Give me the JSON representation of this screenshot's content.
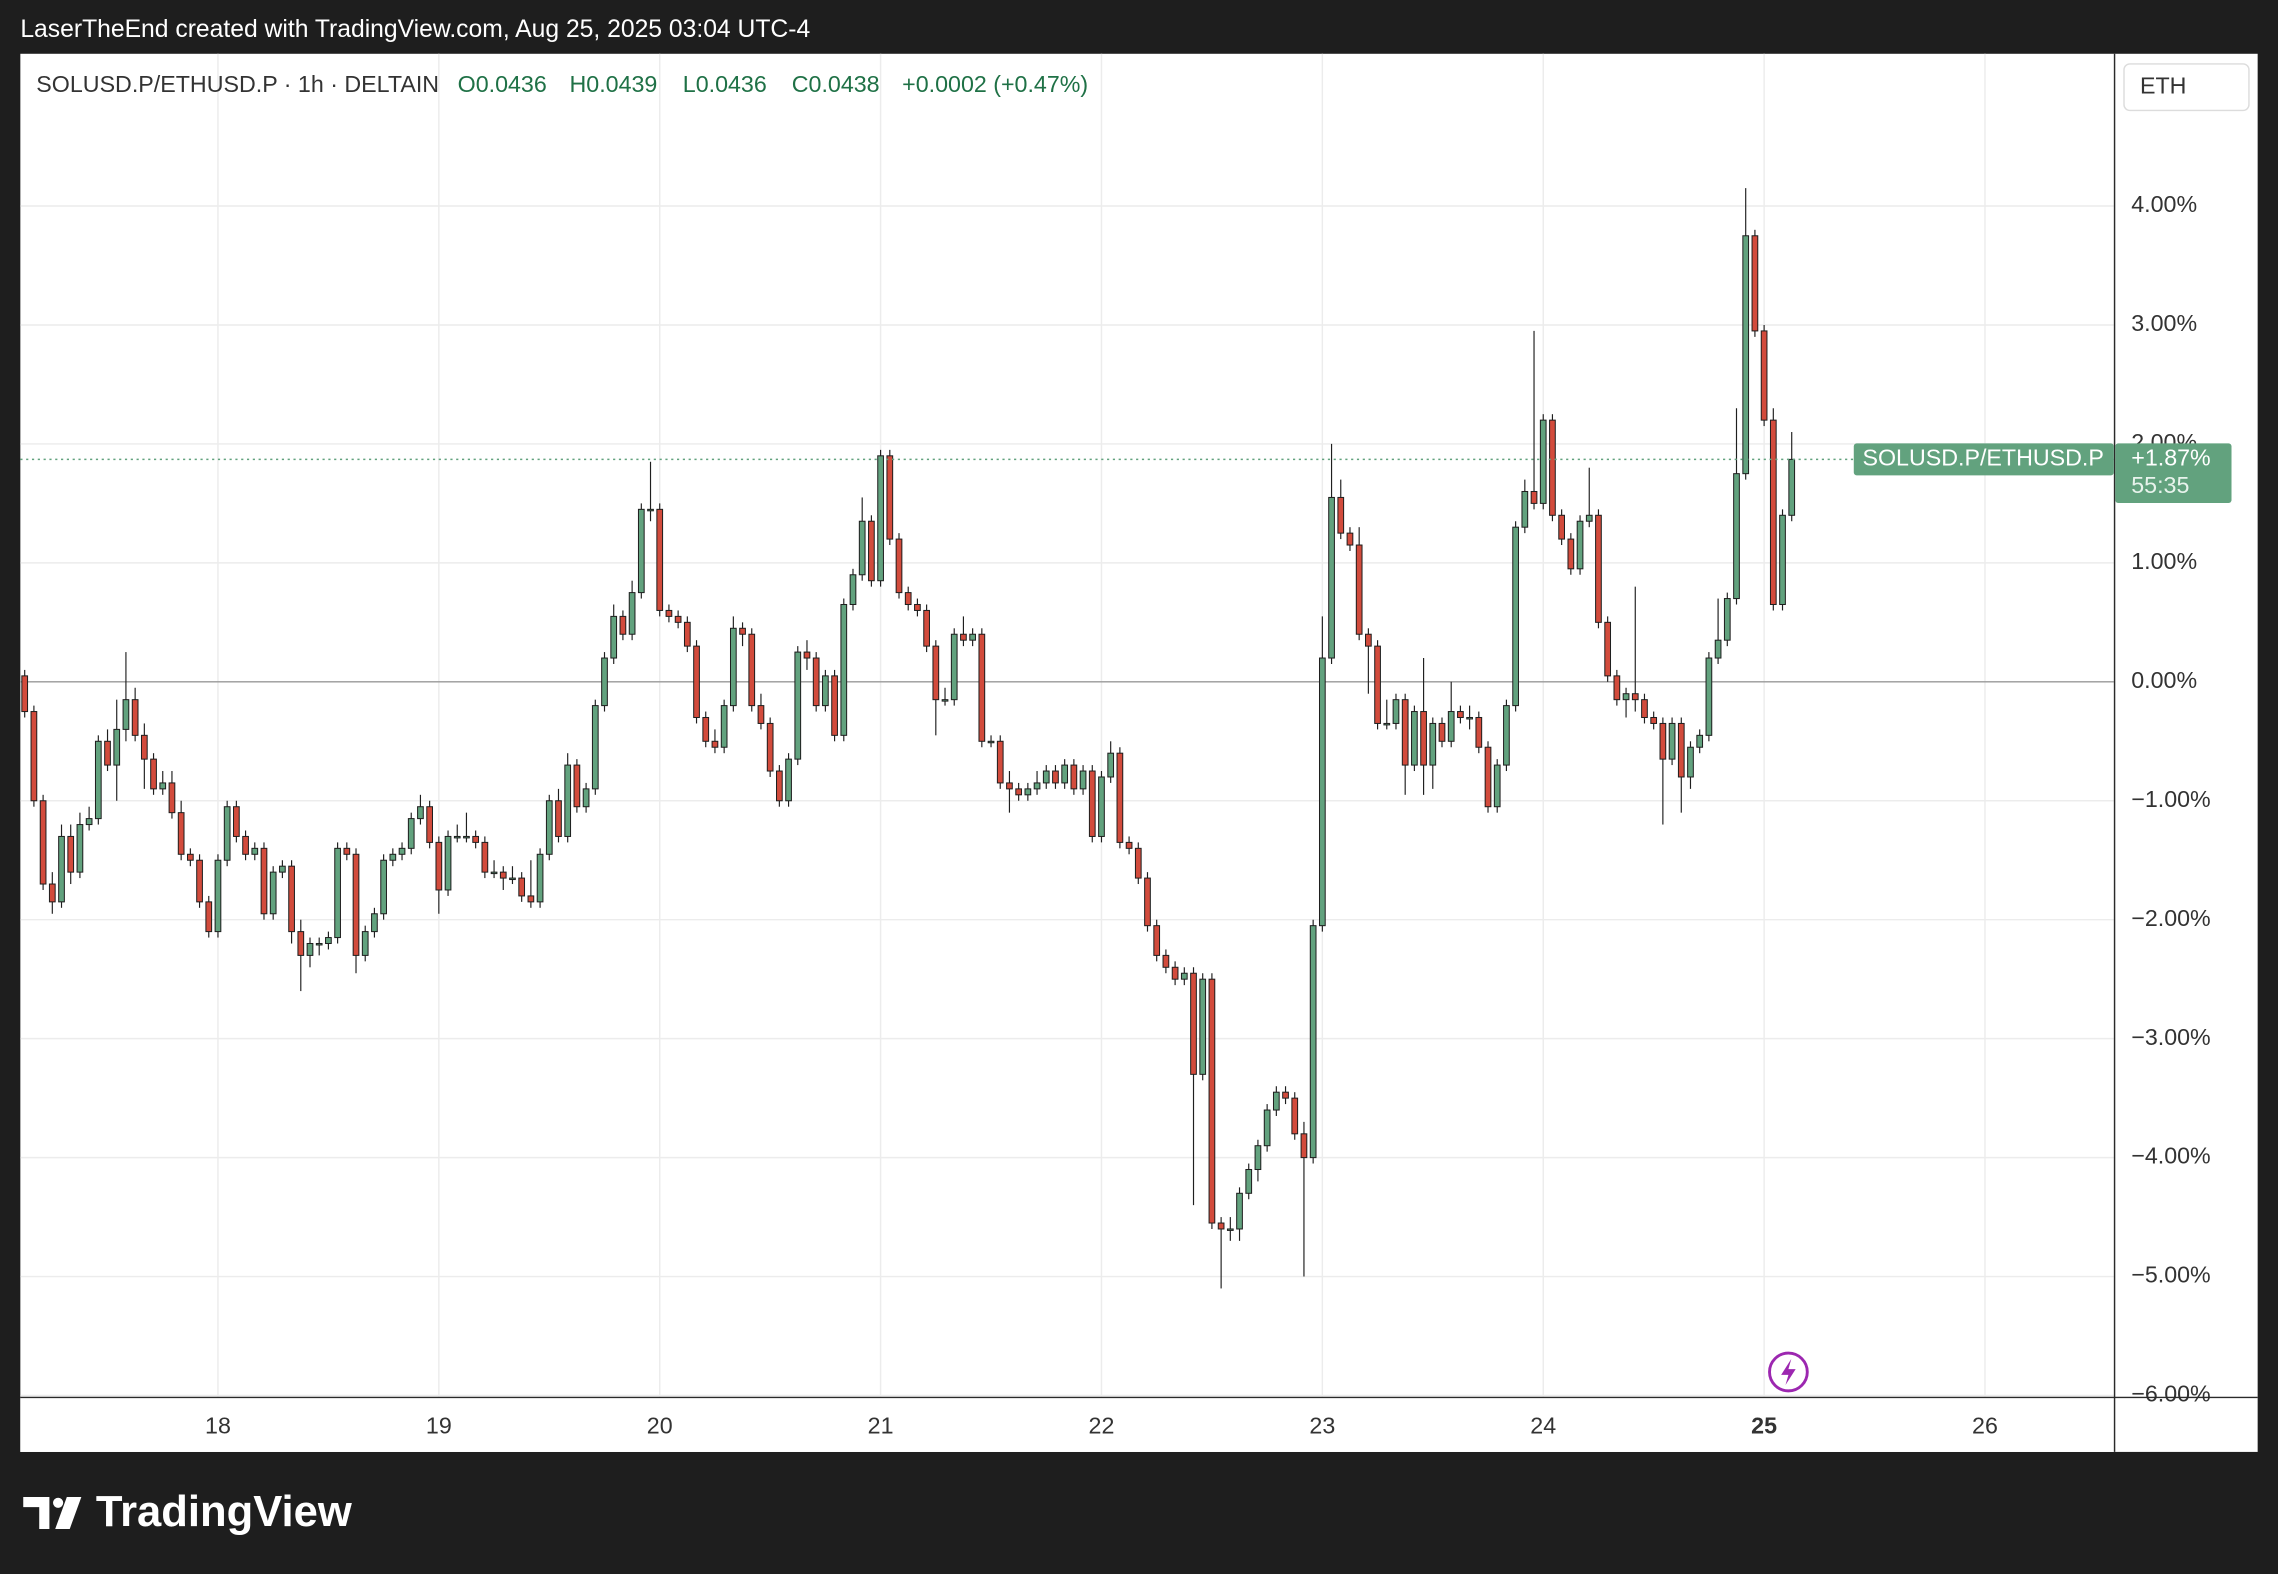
{
  "header": {
    "title": "LaserTheEnd created with TradingView.com, Aug 25, 2025 03:04 UTC-4"
  },
  "logo": {
    "text": "TradingView"
  },
  "chart_data": {
    "type": "candlestick",
    "legend_title": "SOLUSD.P/ETHUSD.P · 1h · DELTAIN",
    "ohlc_legend": [
      "O0.0436",
      "H0.0439",
      "L0.0436",
      "C0.0438",
      "+0.0002 (+0.47%)"
    ],
    "currency_button": "ETH",
    "last_symbol": "SOLUSD.P/ETHUSD.P",
    "last_value": {
      "value": 1.87,
      "label": "+1.87%"
    },
    "countdown": "55:35",
    "up_color": "#62a27e",
    "down_color": "#d24b3c",
    "border_color": "#1f1f1f",
    "grid": true,
    "zero_line": true,
    "ylim": [
      -6.01,
      5.28
    ],
    "yticks": [
      {
        "value": 4,
        "label": "4.00%"
      },
      {
        "value": 3,
        "label": "3.00%"
      },
      {
        "value": 2,
        "label": "2.00%"
      },
      {
        "value": 1,
        "label": "1.00%"
      },
      {
        "value": 0,
        "label": "0.00%"
      },
      {
        "value": -1,
        "label": "−1.00%"
      },
      {
        "value": -2,
        "label": "−2.00%"
      },
      {
        "value": -3,
        "label": "−3.00%"
      },
      {
        "value": -4,
        "label": "−4.00%"
      },
      {
        "value": -5,
        "label": "−5.00%"
      },
      {
        "value": -6,
        "label": "−6.00%"
      }
    ],
    "categories": [
      null,
      null,
      null,
      null,
      null,
      null,
      null,
      null,
      null,
      null,
      null,
      null,
      null,
      null,
      null,
      null,
      null,
      null,
      null,
      null,
      null,
      "18",
      null,
      null,
      null,
      null,
      null,
      null,
      null,
      null,
      null,
      null,
      null,
      null,
      null,
      null,
      null,
      null,
      null,
      null,
      null,
      null,
      null,
      null,
      null,
      "19",
      null,
      null,
      null,
      null,
      null,
      null,
      null,
      null,
      null,
      null,
      null,
      null,
      null,
      null,
      null,
      null,
      null,
      null,
      null,
      null,
      null,
      null,
      null,
      "20",
      null,
      null,
      null,
      null,
      null,
      null,
      null,
      null,
      null,
      null,
      null,
      null,
      null,
      null,
      null,
      null,
      null,
      null,
      null,
      null,
      null,
      null,
      null,
      "21",
      null,
      null,
      null,
      null,
      null,
      null,
      null,
      null,
      null,
      null,
      null,
      null,
      null,
      null,
      null,
      null,
      null,
      null,
      null,
      null,
      null,
      null,
      null,
      "22",
      null,
      null,
      null,
      null,
      null,
      null,
      null,
      null,
      null,
      null,
      null,
      null,
      null,
      null,
      null,
      null,
      null,
      null,
      null,
      null,
      null,
      null,
      null,
      "23",
      null,
      null,
      null,
      null,
      null,
      null,
      null,
      null,
      null,
      null,
      null,
      null,
      null,
      null,
      null,
      null,
      null,
      null,
      null,
      null,
      null,
      null,
      null,
      "24",
      null,
      null,
      null,
      null,
      null,
      null,
      null,
      null,
      null,
      null,
      null,
      null,
      null,
      null,
      null,
      null,
      null,
      null,
      null,
      null,
      null,
      null,
      null,
      "25",
      null,
      null,
      null,
      null,
      null,
      null,
      null,
      null,
      null,
      null,
      null,
      null,
      null,
      null,
      null,
      null,
      null,
      null,
      null,
      null,
      null,
      null,
      null,
      "26",
      null,
      null,
      null,
      null,
      null,
      null,
      null,
      null,
      null,
      null,
      null,
      null,
      null,
      null
    ],
    "candles": [
      [
        0.05,
        0.1,
        -0.3,
        -0.25
      ],
      [
        -0.25,
        -0.2,
        -1.05,
        -1.0
      ],
      [
        -1.0,
        -0.95,
        -1.75,
        -1.7
      ],
      [
        -1.7,
        -1.6,
        -1.95,
        -1.85
      ],
      [
        -1.85,
        -1.2,
        -1.9,
        -1.3
      ],
      [
        -1.3,
        -1.2,
        -1.7,
        -1.6
      ],
      [
        -1.6,
        -1.1,
        -1.65,
        -1.2
      ],
      [
        -1.2,
        -1.05,
        -1.25,
        -1.15
      ],
      [
        -1.15,
        -0.45,
        -1.2,
        -0.5
      ],
      [
        -0.5,
        -0.4,
        -0.75,
        -0.7
      ],
      [
        -0.7,
        -0.15,
        -1.0,
        -0.4
      ],
      [
        -0.4,
        0.25,
        -0.5,
        -0.15
      ],
      [
        -0.15,
        -0.05,
        -0.5,
        -0.45
      ],
      [
        -0.45,
        -0.35,
        -0.9,
        -0.65
      ],
      [
        -0.65,
        -0.6,
        -0.95,
        -0.9
      ],
      [
        -0.9,
        -0.75,
        -0.95,
        -0.85
      ],
      [
        -0.85,
        -0.75,
        -1.15,
        -1.1
      ],
      [
        -1.1,
        -1.0,
        -1.5,
        -1.45
      ],
      [
        -1.45,
        -1.4,
        -1.55,
        -1.5
      ],
      [
        -1.5,
        -1.45,
        -1.9,
        -1.85
      ],
      [
        -1.85,
        -1.8,
        -2.15,
        -2.1
      ],
      [
        -2.1,
        -1.45,
        -2.15,
        -1.5
      ],
      [
        -1.5,
        -1.0,
        -1.55,
        -1.05
      ],
      [
        -1.05,
        -1.0,
        -1.35,
        -1.3
      ],
      [
        -1.3,
        -1.25,
        -1.5,
        -1.45
      ],
      [
        -1.45,
        -1.35,
        -1.5,
        -1.4
      ],
      [
        -1.4,
        -1.35,
        -2.0,
        -1.95
      ],
      [
        -1.95,
        -1.55,
        -2.0,
        -1.6
      ],
      [
        -1.6,
        -1.5,
        -1.65,
        -1.55
      ],
      [
        -1.55,
        -1.5,
        -2.2,
        -2.1
      ],
      [
        -2.1,
        -2.0,
        -2.6,
        -2.3
      ],
      [
        -2.3,
        -2.15,
        -2.4,
        -2.2
      ],
      [
        -2.2,
        -2.15,
        -2.3,
        -2.2
      ],
      [
        -2.2,
        -2.1,
        -2.25,
        -2.15
      ],
      [
        -2.15,
        -1.35,
        -2.2,
        -1.4
      ],
      [
        -1.4,
        -1.35,
        -1.5,
        -1.45
      ],
      [
        -1.45,
        -1.4,
        -2.45,
        -2.3
      ],
      [
        -2.3,
        -2.05,
        -2.35,
        -2.1
      ],
      [
        -2.1,
        -1.9,
        -2.15,
        -1.95
      ],
      [
        -1.95,
        -1.45,
        -2.0,
        -1.5
      ],
      [
        -1.5,
        -1.4,
        -1.55,
        -1.45
      ],
      [
        -1.45,
        -1.35,
        -1.5,
        -1.4
      ],
      [
        -1.4,
        -1.1,
        -1.45,
        -1.15
      ],
      [
        -1.15,
        -0.95,
        -1.2,
        -1.05
      ],
      [
        -1.05,
        -1.0,
        -1.4,
        -1.35
      ],
      [
        -1.35,
        -1.3,
        -1.95,
        -1.75
      ],
      [
        -1.75,
        -1.25,
        -1.8,
        -1.3
      ],
      [
        -1.3,
        -1.2,
        -1.35,
        -1.3
      ],
      [
        -1.3,
        -1.1,
        -1.35,
        -1.3
      ],
      [
        -1.3,
        -1.25,
        -1.4,
        -1.35
      ],
      [
        -1.35,
        -1.3,
        -1.65,
        -1.6
      ],
      [
        -1.6,
        -1.5,
        -1.65,
        -1.6
      ],
      [
        -1.6,
        -1.55,
        -1.75,
        -1.65
      ],
      [
        -1.65,
        -1.55,
        -1.7,
        -1.65
      ],
      [
        -1.65,
        -1.6,
        -1.85,
        -1.8
      ],
      [
        -1.8,
        -1.5,
        -1.9,
        -1.85
      ],
      [
        -1.85,
        -1.4,
        -1.9,
        -1.45
      ],
      [
        -1.45,
        -0.95,
        -1.5,
        -1.0
      ],
      [
        -1.0,
        -0.9,
        -1.35,
        -1.3
      ],
      [
        -1.3,
        -0.6,
        -1.35,
        -0.7
      ],
      [
        -0.7,
        -0.65,
        -1.1,
        -1.05
      ],
      [
        -1.05,
        -0.85,
        -1.1,
        -0.9
      ],
      [
        -0.9,
        -0.15,
        -0.95,
        -0.2
      ],
      [
        -0.2,
        0.25,
        -0.25,
        0.2
      ],
      [
        0.2,
        0.65,
        0.15,
        0.55
      ],
      [
        0.55,
        0.6,
        0.35,
        0.4
      ],
      [
        0.4,
        0.85,
        0.35,
        0.75
      ],
      [
        0.75,
        1.5,
        0.7,
        1.45
      ],
      [
        1.45,
        1.85,
        1.35,
        1.45
      ],
      [
        1.45,
        1.5,
        0.55,
        0.6
      ],
      [
        0.6,
        0.65,
        0.5,
        0.55
      ],
      [
        0.55,
        0.6,
        0.45,
        0.5
      ],
      [
        0.5,
        0.55,
        0.25,
        0.3
      ],
      [
        0.3,
        0.35,
        -0.35,
        -0.3
      ],
      [
        -0.3,
        -0.25,
        -0.55,
        -0.5
      ],
      [
        -0.5,
        -0.4,
        -0.6,
        -0.55
      ],
      [
        -0.55,
        -0.15,
        -0.6,
        -0.2
      ],
      [
        -0.2,
        0.55,
        -0.25,
        0.45
      ],
      [
        0.45,
        0.5,
        0.3,
        0.4
      ],
      [
        0.4,
        0.45,
        -0.25,
        -0.2
      ],
      [
        -0.2,
        -0.1,
        -0.4,
        -0.35
      ],
      [
        -0.35,
        -0.3,
        -0.8,
        -0.75
      ],
      [
        -0.75,
        -0.7,
        -1.05,
        -1.0
      ],
      [
        -1.0,
        -0.6,
        -1.05,
        -0.65
      ],
      [
        -0.65,
        0.3,
        -0.7,
        0.25
      ],
      [
        0.25,
        0.35,
        0.1,
        0.2
      ],
      [
        0.2,
        0.25,
        -0.25,
        -0.2
      ],
      [
        -0.2,
        0.1,
        -0.25,
        0.05
      ],
      [
        0.05,
        0.1,
        -0.5,
        -0.45
      ],
      [
        -0.45,
        0.7,
        -0.5,
        0.65
      ],
      [
        0.65,
        0.95,
        0.6,
        0.9
      ],
      [
        0.9,
        1.55,
        0.85,
        1.35
      ],
      [
        1.35,
        1.4,
        0.8,
        0.85
      ],
      [
        0.85,
        1.95,
        0.8,
        1.9
      ],
      [
        1.9,
        1.95,
        1.15,
        1.2
      ],
      [
        1.2,
        1.25,
        0.7,
        0.75
      ],
      [
        0.75,
        0.8,
        0.6,
        0.65
      ],
      [
        0.65,
        0.7,
        0.55,
        0.6
      ],
      [
        0.6,
        0.65,
        0.25,
        0.3
      ],
      [
        0.3,
        0.35,
        -0.45,
        -0.15
      ],
      [
        -0.15,
        -0.05,
        -0.2,
        -0.15
      ],
      [
        -0.15,
        0.45,
        -0.2,
        0.4
      ],
      [
        0.4,
        0.55,
        0.3,
        0.35
      ],
      [
        0.35,
        0.45,
        0.3,
        0.4
      ],
      [
        0.4,
        0.45,
        -0.55,
        -0.5
      ],
      [
        -0.5,
        -0.45,
        -0.55,
        -0.5
      ],
      [
        -0.5,
        -0.45,
        -0.9,
        -0.85
      ],
      [
        -0.85,
        -0.75,
        -1.1,
        -0.9
      ],
      [
        -0.9,
        -0.85,
        -1.0,
        -0.95
      ],
      [
        -0.95,
        -0.85,
        -1.0,
        -0.9
      ],
      [
        -0.9,
        -0.75,
        -0.95,
        -0.85
      ],
      [
        -0.85,
        -0.7,
        -0.9,
        -0.75
      ],
      [
        -0.75,
        -0.7,
        -0.9,
        -0.85
      ],
      [
        -0.85,
        -0.65,
        -0.9,
        -0.7
      ],
      [
        -0.7,
        -0.65,
        -0.95,
        -0.9
      ],
      [
        -0.9,
        -0.7,
        -0.95,
        -0.75
      ],
      [
        -0.75,
        -0.7,
        -1.35,
        -1.3
      ],
      [
        -1.3,
        -0.75,
        -1.35,
        -0.8
      ],
      [
        -0.8,
        -0.5,
        -0.85,
        -0.6
      ],
      [
        -0.6,
        -0.55,
        -1.4,
        -1.35
      ],
      [
        -1.35,
        -1.3,
        -1.45,
        -1.4
      ],
      [
        -1.4,
        -1.35,
        -1.7,
        -1.65
      ],
      [
        -1.65,
        -1.6,
        -2.1,
        -2.05
      ],
      [
        -2.05,
        -2.0,
        -2.35,
        -2.3
      ],
      [
        -2.3,
        -2.25,
        -2.45,
        -2.4
      ],
      [
        -2.4,
        -2.35,
        -2.55,
        -2.5
      ],
      [
        -2.5,
        -2.4,
        -2.55,
        -2.45
      ],
      [
        -2.45,
        -2.4,
        -4.4,
        -3.3
      ],
      [
        -3.3,
        -2.45,
        -3.35,
        -2.5
      ],
      [
        -2.5,
        -2.45,
        -4.6,
        -4.55
      ],
      [
        -4.55,
        -4.5,
        -5.1,
        -4.6
      ],
      [
        -4.6,
        -4.5,
        -4.7,
        -4.6
      ],
      [
        -4.6,
        -4.25,
        -4.7,
        -4.3
      ],
      [
        -4.3,
        -4.05,
        -4.35,
        -4.1
      ],
      [
        -4.1,
        -3.85,
        -4.2,
        -3.9
      ],
      [
        -3.9,
        -3.55,
        -3.95,
        -3.6
      ],
      [
        -3.6,
        -3.4,
        -3.65,
        -3.45
      ],
      [
        -3.45,
        -3.4,
        -3.55,
        -3.5
      ],
      [
        -3.5,
        -3.45,
        -3.85,
        -3.8
      ],
      [
        -3.8,
        -3.7,
        -5.0,
        -4.0
      ],
      [
        -4.0,
        -2.0,
        -4.05,
        -2.05
      ],
      [
        -2.05,
        0.55,
        -2.1,
        0.2
      ],
      [
        0.2,
        2.0,
        0.15,
        1.55
      ],
      [
        1.55,
        1.7,
        1.2,
        1.25
      ],
      [
        1.25,
        1.3,
        1.1,
        1.15
      ],
      [
        1.15,
        1.3,
        0.35,
        0.4
      ],
      [
        0.4,
        0.45,
        -0.1,
        0.3
      ],
      [
        0.3,
        0.35,
        -0.4,
        -0.35
      ],
      [
        -0.35,
        -0.15,
        -0.4,
        -0.35
      ],
      [
        -0.35,
        -0.1,
        -0.4,
        -0.15
      ],
      [
        -0.15,
        -0.1,
        -0.95,
        -0.7
      ],
      [
        -0.7,
        -0.2,
        -0.75,
        -0.25
      ],
      [
        -0.25,
        0.2,
        -0.95,
        -0.7
      ],
      [
        -0.7,
        -0.3,
        -0.9,
        -0.35
      ],
      [
        -0.35,
        -0.3,
        -0.55,
        -0.5
      ],
      [
        -0.5,
        0.0,
        -0.55,
        -0.25
      ],
      [
        -0.25,
        -0.2,
        -0.35,
        -0.3
      ],
      [
        -0.3,
        -0.2,
        -0.4,
        -0.3
      ],
      [
        -0.3,
        -0.25,
        -0.6,
        -0.55
      ],
      [
        -0.55,
        -0.5,
        -1.1,
        -1.05
      ],
      [
        -1.05,
        -0.65,
        -1.1,
        -0.7
      ],
      [
        -0.7,
        -0.15,
        -0.75,
        -0.2
      ],
      [
        -0.2,
        1.35,
        -0.25,
        1.3
      ],
      [
        1.3,
        1.7,
        1.25,
        1.6
      ],
      [
        1.6,
        2.95,
        1.45,
        1.5
      ],
      [
        1.5,
        2.25,
        1.45,
        2.2
      ],
      [
        2.2,
        2.25,
        1.35,
        1.4
      ],
      [
        1.4,
        1.45,
        1.15,
        1.2
      ],
      [
        1.2,
        1.25,
        0.9,
        0.95
      ],
      [
        0.95,
        1.4,
        0.9,
        1.35
      ],
      [
        1.35,
        1.8,
        1.3,
        1.4
      ],
      [
        1.4,
        1.45,
        0.45,
        0.5
      ],
      [
        0.5,
        0.55,
        0.0,
        0.05
      ],
      [
        0.05,
        0.1,
        -0.2,
        -0.15
      ],
      [
        -0.15,
        -0.05,
        -0.3,
        -0.1
      ],
      [
        -0.1,
        0.8,
        -0.25,
        -0.15
      ],
      [
        -0.15,
        -0.1,
        -0.35,
        -0.3
      ],
      [
        -0.3,
        -0.25,
        -0.4,
        -0.35
      ],
      [
        -0.35,
        -0.3,
        -1.2,
        -0.65
      ],
      [
        -0.65,
        -0.3,
        -0.7,
        -0.35
      ],
      [
        -0.35,
        -0.3,
        -1.1,
        -0.8
      ],
      [
        -0.8,
        -0.5,
        -0.9,
        -0.55
      ],
      [
        -0.55,
        -0.4,
        -0.6,
        -0.45
      ],
      [
        -0.45,
        0.25,
        -0.5,
        0.2
      ],
      [
        0.2,
        0.7,
        0.15,
        0.35
      ],
      [
        0.35,
        0.75,
        0.3,
        0.7
      ],
      [
        0.7,
        2.3,
        0.65,
        1.75
      ],
      [
        1.75,
        4.15,
        1.7,
        3.75
      ],
      [
        3.75,
        3.8,
        2.9,
        2.95
      ],
      [
        2.95,
        3.0,
        2.15,
        2.2
      ],
      [
        2.2,
        2.3,
        0.6,
        0.65
      ],
      [
        0.65,
        1.45,
        0.6,
        1.4
      ],
      [
        1.4,
        2.1,
        1.35,
        1.87
      ],
      null,
      null,
      null,
      null,
      null,
      null,
      null,
      null,
      null,
      null,
      null,
      null,
      null,
      null,
      null,
      null,
      null,
      null,
      null,
      null,
      null,
      null,
      null,
      null,
      null,
      null,
      null,
      null,
      null,
      null,
      null,
      null,
      null,
      null,
      null
    ]
  }
}
